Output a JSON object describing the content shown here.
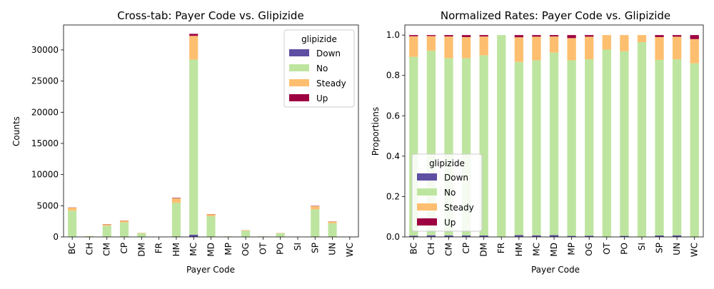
{
  "colors": {
    "Down": "#5e4fa2",
    "No": "#bee5a0",
    "Steady": "#fdbf6f",
    "Up": "#9e0142"
  },
  "chart_data": [
    {
      "type": "bar",
      "stacked": true,
      "title": "Cross-tab: Payer Code vs. Glipizide",
      "xlabel": "Payer Code",
      "ylabel": "Counts",
      "ylim": [
        0,
        34000
      ],
      "yticks": [
        0,
        5000,
        10000,
        15000,
        20000,
        25000,
        30000
      ],
      "grid": false,
      "legend": {
        "title": "glipizide",
        "placement": "top-right"
      },
      "categories": [
        "BC",
        "CH",
        "CM",
        "CP",
        "DM",
        "FR",
        "HM",
        "MC",
        "MD",
        "MP",
        "OG",
        "OT",
        "PO",
        "SI",
        "SP",
        "UN",
        "WC"
      ],
      "series": [
        {
          "name": "Down",
          "values": [
            30,
            1,
            20,
            30,
            5,
            0,
            60,
            350,
            40,
            1,
            10,
            0,
            5,
            0,
            50,
            30,
            0
          ]
        },
        {
          "name": "No",
          "values": [
            4180,
            130,
            1780,
            2300,
            590,
            1,
            5400,
            28100,
            3280,
            70,
            960,
            90,
            590,
            50,
            4370,
            2160,
            50
          ]
        },
        {
          "name": "Steady",
          "values": [
            480,
            10,
            220,
            270,
            60,
            0,
            730,
            3800,
            310,
            8,
            100,
            7,
            50,
            2,
            510,
            260,
            7
          ]
        },
        {
          "name": "Up",
          "values": [
            30,
            0,
            30,
            30,
            5,
            0,
            70,
            330,
            30,
            2,
            8,
            0,
            0,
            0,
            50,
            30,
            1
          ]
        }
      ]
    },
    {
      "type": "bar",
      "stacked": true,
      "title": "Normalized Rates: Payer Code vs. Glipizide",
      "xlabel": "Payer Code",
      "ylabel": "Proportions",
      "ylim": [
        0,
        1.05
      ],
      "yticks": [
        0.0,
        0.2,
        0.4,
        0.6,
        0.8,
        1.0
      ],
      "grid": false,
      "legend": {
        "title": "glipizide",
        "placement": "lower-left"
      },
      "categories": [
        "BC",
        "CH",
        "CM",
        "CP",
        "DM",
        "FR",
        "HM",
        "MC",
        "MD",
        "MP",
        "OG",
        "OT",
        "PO",
        "SI",
        "SP",
        "UN",
        "WC"
      ],
      "series": [
        {
          "name": "Down",
          "values": [
            0.006,
            0.008,
            0.007,
            0.007,
            0.007,
            0.0,
            0.009,
            0.008,
            0.009,
            0.005,
            0.006,
            0.0,
            0.005,
            0.0,
            0.007,
            0.008,
            0.0
          ]
        },
        {
          "name": "No",
          "values": [
            0.886,
            0.914,
            0.878,
            0.878,
            0.893,
            1.0,
            0.858,
            0.867,
            0.904,
            0.87,
            0.874,
            0.928,
            0.915,
            0.965,
            0.87,
            0.872,
            0.86
          ]
        },
        {
          "name": "Steady",
          "values": [
            0.102,
            0.073,
            0.108,
            0.105,
            0.093,
            0.0,
            0.122,
            0.117,
            0.08,
            0.11,
            0.112,
            0.072,
            0.08,
            0.035,
            0.113,
            0.112,
            0.12
          ]
        },
        {
          "name": "Up",
          "values": [
            0.006,
            0.005,
            0.007,
            0.01,
            0.007,
            0.0,
            0.011,
            0.008,
            0.007,
            0.015,
            0.008,
            0.0,
            0.0,
            0.0,
            0.01,
            0.008,
            0.02
          ]
        }
      ]
    }
  ]
}
